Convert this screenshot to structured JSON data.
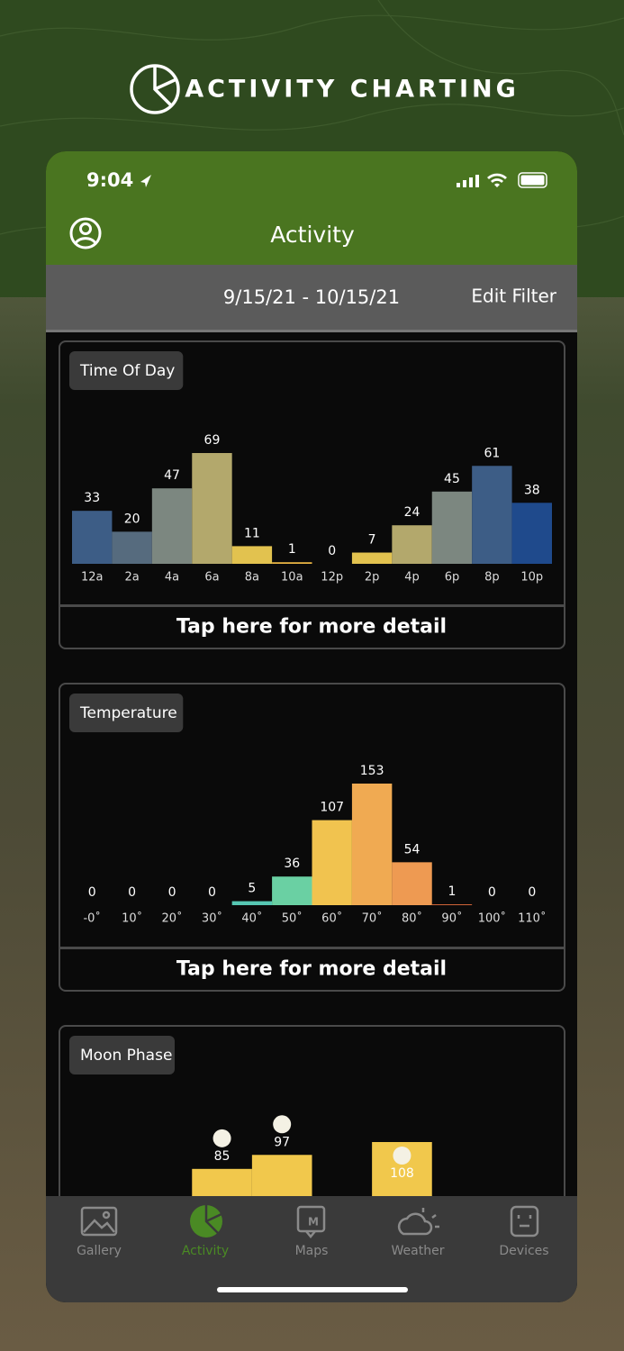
{
  "header": {
    "title": "ACTIVITY CHARTING"
  },
  "status": {
    "time": "9:04"
  },
  "nav": {
    "title": "Activity"
  },
  "filter": {
    "range": "9/15/21 - 10/15/21",
    "action": "Edit Filter"
  },
  "charts": [
    {
      "type": "bar",
      "title": "Time Of Day",
      "categories": [
        "12a",
        "2a",
        "4a",
        "6a",
        "8a",
        "10a",
        "12p",
        "2p",
        "4p",
        "6p",
        "8p",
        "10p"
      ],
      "values": [
        33,
        20,
        47,
        69,
        11,
        1,
        0,
        7,
        24,
        45,
        61,
        38
      ],
      "colors": [
        "#3d5d86",
        "#566b7e",
        "#7c8780",
        "#b3a86c",
        "#e2c24f",
        "#e9b443",
        "#e2c24f",
        "#e2c24f",
        "#b3a86c",
        "#7c8780",
        "#3d5d86",
        "#1f4a8c"
      ],
      "action": "Tap here for more detail"
    },
    {
      "type": "bar",
      "title": "Temperature",
      "categories": [
        "-0˚",
        "10˚",
        "20˚",
        "30˚",
        "40˚",
        "50˚",
        "60˚",
        "70˚",
        "80˚",
        "90˚",
        "100˚",
        "110˚"
      ],
      "values": [
        0,
        0,
        0,
        0,
        5,
        36,
        107,
        153,
        54,
        1,
        0,
        0
      ],
      "colors": [
        "#56c7b3",
        "#56c7b3",
        "#56c7b3",
        "#56c7b3",
        "#56c7b3",
        "#6ad0a3",
        "#f1c34f",
        "#f0aa52",
        "#ee9a52",
        "#e8703f",
        "#e8703f",
        "#e8703f"
      ],
      "action": "Tap here for more detail"
    },
    {
      "type": "bar",
      "title": "Moon Phase",
      "categories": [
        null,
        null,
        null,
        null,
        null,
        null,
        null,
        null
      ],
      "values": [
        null,
        null,
        85,
        97,
        null,
        108,
        null,
        null
      ],
      "colors": [
        "#f1c84c",
        "#f1c84c",
        "#f1c84c",
        "#f1c84c",
        "#f1c84c",
        "#f1c84c",
        "#f1c84c",
        "#f1c84c"
      ]
    }
  ],
  "tabs": [
    "Gallery",
    "Activity",
    "Maps",
    "Weather",
    "Devices"
  ]
}
